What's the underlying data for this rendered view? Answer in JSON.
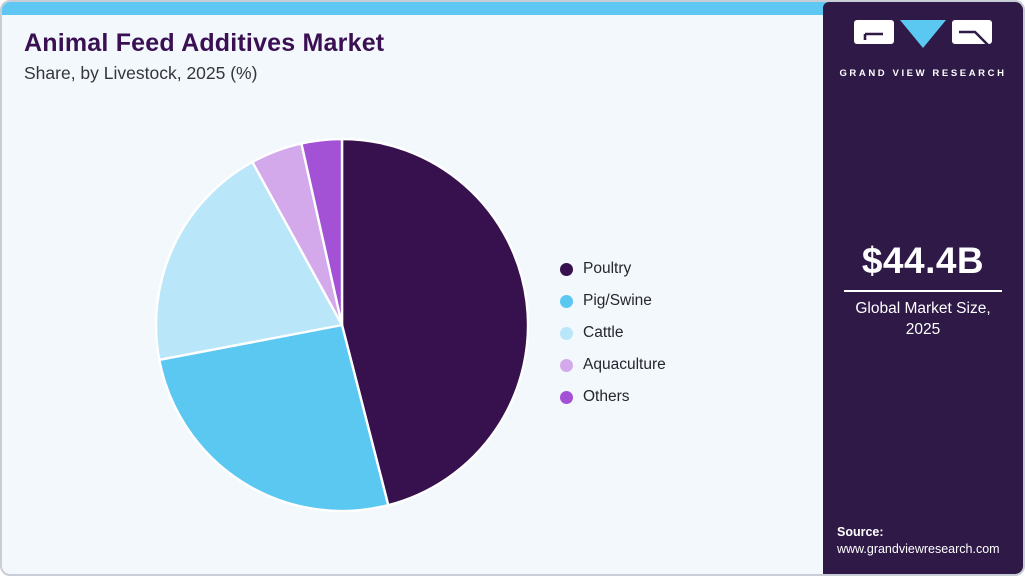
{
  "header": {
    "title": "Animal Feed Additives Market",
    "subtitle": "Share, by Livestock, 2025 (%)"
  },
  "chart_data": {
    "type": "pie",
    "title": "Animal Feed Additives Market Share, by Livestock, 2025 (%)",
    "categories": [
      "Poultry",
      "Pig/Swine",
      "Cattle",
      "Aquaculture",
      "Others"
    ],
    "values": [
      46,
      26,
      20,
      4.5,
      3.5
    ],
    "unit": "%",
    "colors": [
      "#37114D",
      "#5BC8F2",
      "#BAE6FA",
      "#D4A9EC",
      "#A352D6"
    ],
    "start_angle_deg": 0,
    "direction": "clockwise",
    "legend_position": "right",
    "slice_separator_color": "#FFFFFF"
  },
  "sidebar": {
    "logo_text": "GRAND VIEW RESEARCH",
    "market_size": "$44.4B",
    "market_label_line1": "Global Market Size,",
    "market_label_line2": "2025",
    "source_label": "Source:",
    "source_url": "www.grandviewresearch.com"
  },
  "colors": {
    "topbar": "#5EC8F2",
    "card_background": "#F2F8FC",
    "sidebar_background": "#2E1947",
    "title_text": "#3A1053",
    "subtitle_text": "#35353D",
    "legend_text": "#26262E",
    "logo_triangle": "#5BC8F2"
  }
}
